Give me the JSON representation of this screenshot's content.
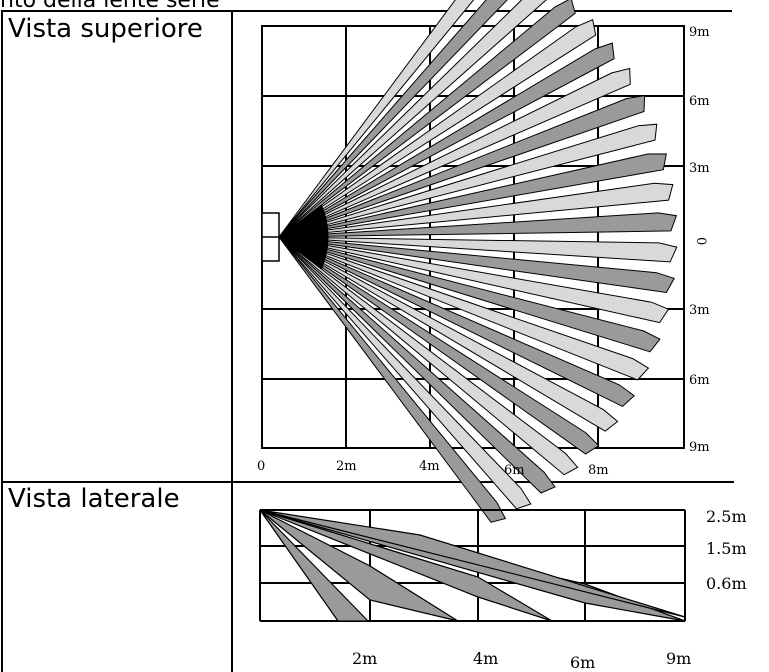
{
  "caption": "nto della lente serie",
  "top_view": {
    "label": "Vista superiore",
    "x_ticks": [
      "0",
      "2m",
      "4m",
      "6m",
      "8m"
    ],
    "y_ticks_right": [
      "9m",
      "6m",
      "3m",
      "0",
      "3m",
      "6m",
      "9m"
    ]
  },
  "side_view": {
    "label": "Vista laterale",
    "height_ticks": [
      "2.5m",
      "1.5m",
      "0.6m"
    ],
    "x_ticks": [
      "2m",
      "4m",
      "6m",
      "9m"
    ]
  },
  "colors": {
    "beam_dark": "#9a9a9a",
    "beam_light": "#d9d9d9",
    "line": "#000000",
    "apex": "#000000"
  }
}
